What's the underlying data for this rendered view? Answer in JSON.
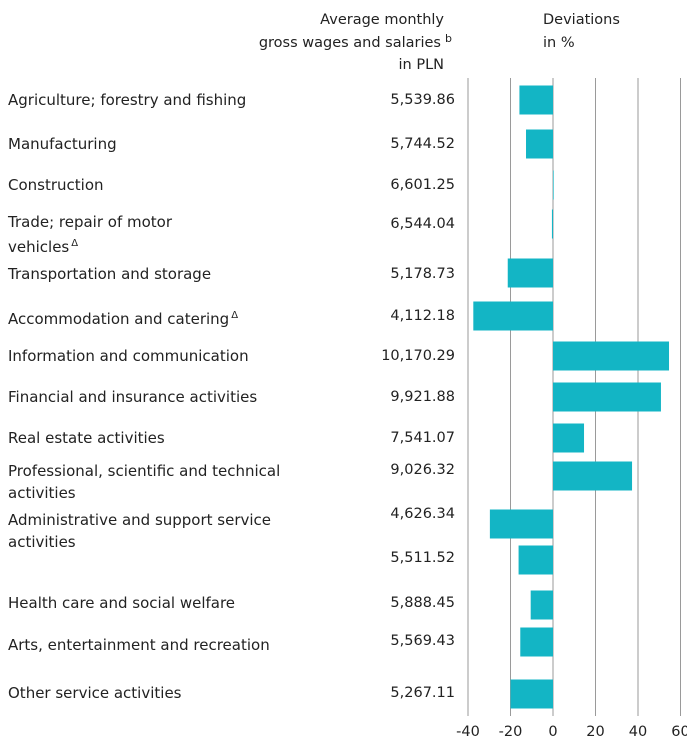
{
  "chart_data": {
    "type": "bar",
    "column_headers": {
      "wages": "Average monthly",
      "wages_line2": "gross wages and salaries",
      "wages_note": "b",
      "wages_line3": "in PLN",
      "deviations": "Deviations",
      "deviations_line2": "in %"
    },
    "categories": [
      "Agriculture; forestry and fishing",
      "Manufacturing",
      "Construction",
      "Trade; repair of motor vehicles",
      "Transportation and storage",
      "Accommodation and catering",
      "Information and communication",
      "Financial and insurance activities",
      "Real estate activities",
      "Professional, scientific and technical activities",
      "Administrative and support service activities",
      null,
      "Health care and social welfare",
      "Arts, entertainment and recreation",
      "Other service activities"
    ],
    "category_footnotes": [
      null,
      null,
      null,
      "Δ",
      null,
      "Δ",
      null,
      null,
      null,
      null,
      null,
      null,
      null,
      null,
      null
    ],
    "wages": [
      "5,539.86",
      "5,744.52",
      "6,601.25",
      "6,544.04",
      "5,178.73",
      "4,112.18",
      "10,170.29",
      "9,921.88",
      "7,541.07",
      "9,026.32",
      "4,626.34",
      "5,511.52",
      "5,888.45",
      "5,569.43",
      "5,267.11"
    ],
    "values": [
      -15.8,
      -12.7,
      0.3,
      -0.5,
      -21.3,
      -37.5,
      54.6,
      50.8,
      14.6,
      37.2,
      -29.7,
      -16.2,
      -10.5,
      -15.4,
      -20.0
    ],
    "color": "#13b5c5",
    "xlim": [
      -40,
      60
    ],
    "xticks": [
      -40,
      -20,
      0,
      20,
      40,
      60
    ],
    "grid": true
  }
}
